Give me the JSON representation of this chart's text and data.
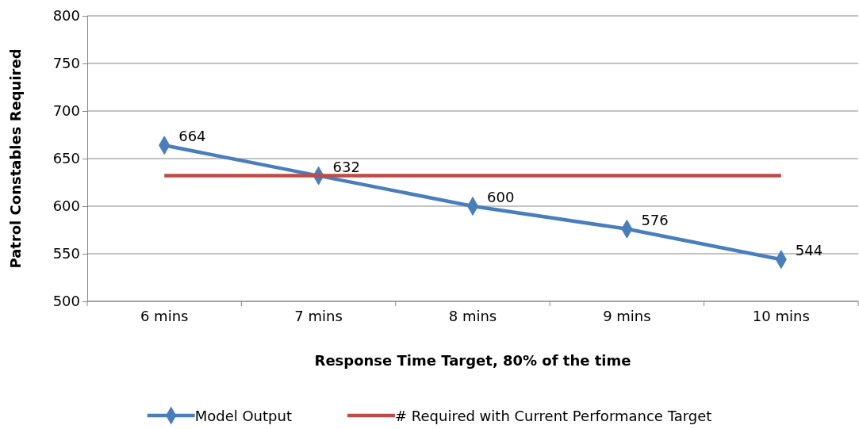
{
  "chart_data": {
    "type": "line",
    "xlabel": "Response Time Target, 80% of the time",
    "ylabel": "Patrol Constables Required",
    "categories": [
      "6 mins",
      "7 mins",
      "8 mins",
      "9 mins",
      "10 mins"
    ],
    "series": [
      {
        "name": "Model Output",
        "color": "#4a7ebb",
        "values": [
          664,
          632,
          600,
          576,
          544
        ],
        "marker": "diamond",
        "value_labels": [
          "664",
          "632",
          "600",
          "576",
          "544"
        ]
      },
      {
        "name": "# Required with Current Performance Target",
        "color": "#be4b48",
        "values": [
          632,
          632,
          632,
          632,
          632
        ],
        "marker": "none"
      }
    ],
    "ylim": [
      500,
      800
    ],
    "yticks": [
      500,
      550,
      600,
      650,
      700,
      750,
      800
    ],
    "grid": "y",
    "legend": "bottom",
    "line_style": "solid"
  }
}
